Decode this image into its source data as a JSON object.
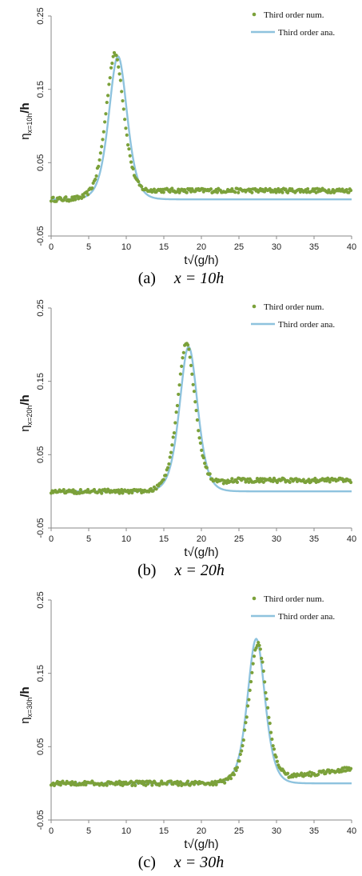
{
  "colors": {
    "numerical": "#7ba13a",
    "analytical": "#8ec3de",
    "axis": "#8a8a8a"
  },
  "chart_data": [
    {
      "type": "line",
      "caption_label": "(a)",
      "caption_math": "x = 10h",
      "xlabel": "t√(g/h)",
      "ylabel": "η",
      "ylabel_sub": "x=10h",
      "ylabel_suffix": "/h",
      "xlim": [
        0,
        40
      ],
      "ylim": [
        -0.05,
        0.25
      ],
      "xticks": [
        "0",
        "5",
        "10",
        "15",
        "20",
        "25",
        "30",
        "35",
        "40"
      ],
      "yticks": [
        "-0.05",
        "0.05",
        "0.15",
        "0.25"
      ],
      "legend_position": "top-right",
      "series": [
        {
          "name": "Third order num.",
          "style": "markers",
          "peak_t": 8.5,
          "amp": 0.198,
          "width": 1.62,
          "offset": 0.0,
          "tail": [
            [
              9.5,
              0.0
            ],
            [
              14,
              0.012
            ],
            [
              40,
              0.012
            ]
          ],
          "x": [
            0,
            2,
            4,
            6,
            7,
            8,
            8.5,
            9,
            10,
            11,
            12,
            13,
            14,
            16,
            20,
            25,
            30,
            35,
            40
          ],
          "y": [
            0.0,
            0.003,
            0.018,
            0.085,
            0.15,
            0.192,
            0.198,
            0.19,
            0.142,
            0.09,
            0.052,
            0.035,
            0.022,
            0.014,
            0.013,
            0.018,
            0.012,
            0.013,
            0.011
          ]
        },
        {
          "name": "Third order ana.",
          "style": "line",
          "peak_t": 8.9,
          "amp": 0.195,
          "width": 1.62,
          "offset": 0.0
        }
      ]
    },
    {
      "type": "line",
      "caption_label": "(b)",
      "caption_math": "x = 20h",
      "xlabel": "t√(g/h)",
      "ylabel": "η",
      "ylabel_sub": "x=20h",
      "ylabel_suffix": "/h",
      "xlim": [
        0,
        40
      ],
      "ylim": [
        -0.05,
        0.25
      ],
      "xticks": [
        "0",
        "5",
        "10",
        "15",
        "20",
        "25",
        "30",
        "35",
        "40"
      ],
      "yticks": [
        "-0.05",
        "0.05",
        "0.15",
        "0.25"
      ],
      "legend_position": "top-right",
      "series": [
        {
          "name": "Third order num.",
          "style": "markers",
          "peak_t": 18.0,
          "amp": 0.2,
          "width": 1.6,
          "offset": 0.0,
          "tail": [
            [
              19,
              0.0
            ],
            [
              24,
              0.015
            ],
            [
              40,
              0.015
            ]
          ],
          "x": [
            0,
            5,
            10,
            13,
            15,
            16,
            17,
            18,
            19,
            20,
            22,
            24,
            26,
            30,
            35,
            40
          ],
          "y": [
            0.0,
            0.001,
            0.0,
            0.01,
            0.05,
            0.105,
            0.17,
            0.2,
            0.185,
            0.14,
            0.055,
            0.025,
            0.018,
            0.015,
            0.014,
            0.014
          ]
        },
        {
          "name": "Third order ana.",
          "style": "line",
          "peak_t": 18.3,
          "amp": 0.197,
          "width": 1.6,
          "offset": 0.0
        }
      ]
    },
    {
      "type": "line",
      "caption_label": "(c)",
      "caption_math": "x = 30h",
      "xlabel": "t√(g/h)",
      "ylabel": "η",
      "ylabel_sub": "x=30h",
      "ylabel_suffix": "/h",
      "xlim": [
        0,
        40
      ],
      "ylim": [
        -0.05,
        0.25
      ],
      "xticks": [
        "0",
        "5",
        "10",
        "15",
        "20",
        "25",
        "30",
        "35",
        "40"
      ],
      "yticks": [
        "-0.05",
        "0.05",
        "0.15",
        "0.25"
      ],
      "legend_position": "top-right",
      "series": [
        {
          "name": "Third order num.",
          "style": "markers",
          "peak_t": 27.5,
          "amp": 0.19,
          "width": 1.6,
          "offset": 0.0,
          "tail": [
            [
              28.5,
              0.0
            ],
            [
              34,
              0.012
            ],
            [
              40,
              0.02
            ]
          ],
          "x": [
            0,
            5,
            10,
            15,
            20,
            22,
            24,
            25,
            26,
            27,
            27.5,
            28,
            29,
            30,
            32,
            35,
            40
          ],
          "y": [
            0.0,
            0.002,
            0.003,
            0.002,
            0.004,
            0.015,
            0.05,
            0.09,
            0.15,
            0.185,
            0.19,
            0.183,
            0.14,
            0.08,
            0.025,
            0.012,
            0.02
          ]
        },
        {
          "name": "Third order ana.",
          "style": "line",
          "peak_t": 27.3,
          "amp": 0.197,
          "width": 1.55,
          "offset": 0.0
        }
      ]
    }
  ]
}
